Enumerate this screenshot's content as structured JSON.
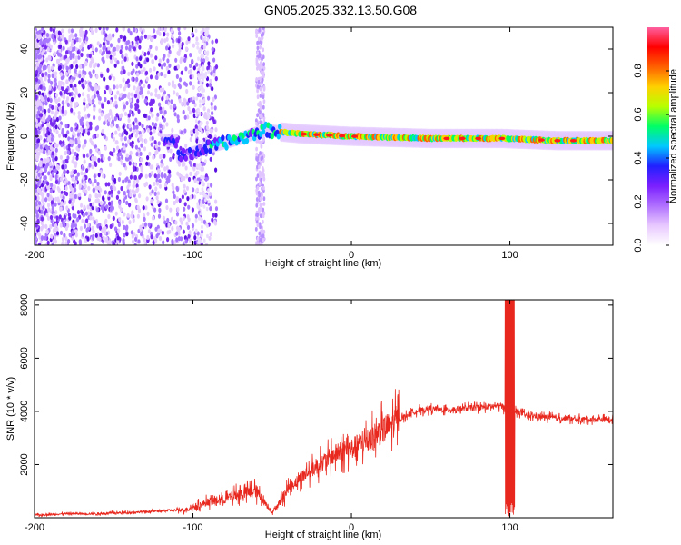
{
  "title": "GN05.2025.332.13.50.G08",
  "chart_data": [
    {
      "type": "heatmap",
      "name": "spectrogram",
      "xlabel": "Height of straight line (km)",
      "ylabel": "Frequency (Hz)",
      "xlim": [
        -200,
        165
      ],
      "ylim": [
        -50,
        50
      ],
      "xticks": [
        -200,
        -100,
        0,
        100
      ],
      "yticks": [
        -40,
        -20,
        0,
        20,
        40
      ],
      "colorbar": {
        "label": "Normalized spectral amplitude",
        "range": [
          0,
          1
        ],
        "ticks": [
          0.0,
          0.2,
          0.4,
          0.6,
          0.8
        ],
        "tick_labels": [
          "0.0",
          "0.2",
          "0.4",
          "0.6",
          "0.8"
        ],
        "stops": [
          "#ffffff",
          "#e8c8ff",
          "#b070ff",
          "#7a1fff",
          "#2020ff",
          "#00c8ff",
          "#00ff66",
          "#b8ff00",
          "#ffd000",
          "#ff6000",
          "#ff0000",
          "#ff60a0"
        ]
      },
      "ridge": [
        {
          "x": -110,
          "y": -10
        },
        {
          "x": -90,
          "y": -5
        },
        {
          "x": -70,
          "y": -1
        },
        {
          "x": -55,
          "y": 3
        },
        {
          "x": -45,
          "y": 2
        },
        {
          "x": -30,
          "y": 1
        },
        {
          "x": 0,
          "y": 0
        },
        {
          "x": 50,
          "y": -1
        },
        {
          "x": 95,
          "y": -1
        },
        {
          "x": 130,
          "y": -2
        },
        {
          "x": 165,
          "y": -2
        }
      ]
    },
    {
      "type": "line",
      "name": "snr",
      "xlabel": "Height of straight line (km)",
      "ylabel": "SNR (10 * v/v)",
      "xlim": [
        -200,
        165
      ],
      "ylim": [
        0,
        8200
      ],
      "xticks": [
        -200,
        -100,
        0,
        100
      ],
      "yticks": [
        2000,
        4000,
        6000,
        8000
      ],
      "series": [
        {
          "name": "SNR",
          "color": "#e8281e",
          "x": [
            -200,
            -180,
            -160,
            -140,
            -120,
            -105,
            -100,
            -90,
            -80,
            -70,
            -60,
            -55,
            -50,
            -45,
            -40,
            -30,
            -20,
            -10,
            0,
            10,
            20,
            30,
            40,
            50,
            60,
            70,
            80,
            90,
            95,
            98,
            100,
            102,
            105,
            110,
            120,
            130,
            140,
            150,
            165
          ],
          "y": [
            100,
            150,
            150,
            200,
            250,
            300,
            400,
            600,
            700,
            900,
            1000,
            600,
            200,
            600,
            1100,
            1600,
            2000,
            2400,
            2600,
            2900,
            3300,
            3700,
            4000,
            4100,
            4050,
            4100,
            4150,
            4200,
            4200,
            4000,
            500,
            4000,
            4000,
            3850,
            3800,
            3750,
            3700,
            3700,
            3700
          ]
        }
      ]
    }
  ]
}
